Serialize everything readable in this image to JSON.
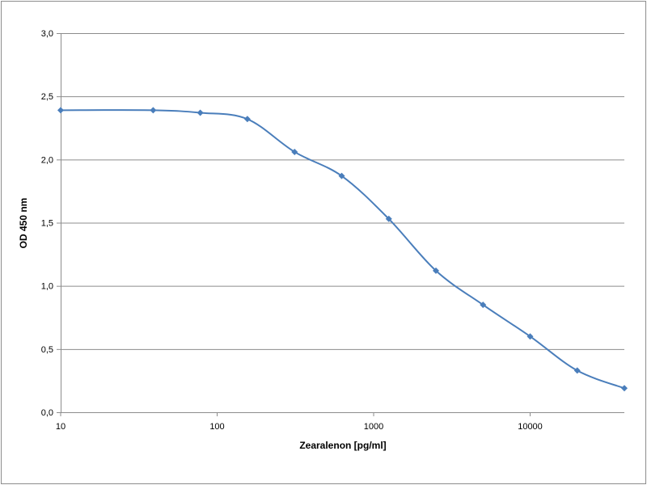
{
  "chart_data": {
    "type": "line",
    "title": "",
    "xlabel": "Zearalenon [pg/ml]",
    "ylabel": "OD 450 nm",
    "xscale": "log",
    "xlim": [
      10,
      40000
    ],
    "ylim": [
      0,
      3.0
    ],
    "x_ticks": [
      10,
      100,
      1000,
      10000
    ],
    "x_tick_labels": [
      "10",
      "100",
      "1000",
      "10000"
    ],
    "y_ticks": [
      0,
      0.5,
      1.0,
      1.5,
      2.0,
      2.5,
      3.0
    ],
    "y_tick_labels": [
      "0,0",
      "0,5",
      "1,0",
      "1,5",
      "2,0",
      "2,5",
      "3,0"
    ],
    "grid": "horizontal",
    "legend": "none",
    "series": [
      {
        "name": "OD 450 nm",
        "color": "#4a7ebb",
        "smooth": true,
        "marker": "diamond",
        "x": [
          10,
          39,
          78,
          156,
          312.5,
          625,
          1250,
          2500,
          5000,
          10000,
          20000,
          40000
        ],
        "y": [
          2.39,
          2.39,
          2.37,
          2.32,
          2.06,
          1.87,
          1.53,
          1.12,
          0.85,
          0.6,
          0.33,
          0.19
        ]
      }
    ]
  }
}
